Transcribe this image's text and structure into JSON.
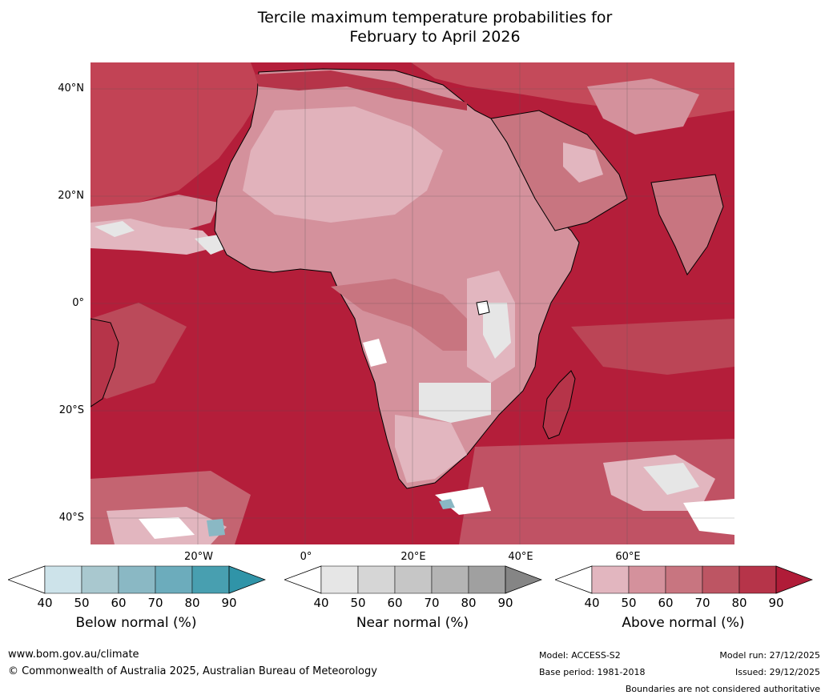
{
  "title": {
    "line1": "Tercile maximum temperature probabilities for",
    "line2": "February to April 2026"
  },
  "map": {
    "lat_labels": [
      "40°N",
      "20°N",
      "0°",
      "20°S",
      "40°S"
    ],
    "lon_labels": [
      "20°W",
      "0°",
      "20°E",
      "40°E",
      "60°E"
    ],
    "lat_range": [
      -45,
      45
    ],
    "lon_range": [
      -40,
      80
    ],
    "base_color": "#b41e3a"
  },
  "colorbars": [
    {
      "name": "below",
      "title": "Below normal (%)",
      "ticks": [
        "40",
        "50",
        "60",
        "70",
        "80",
        "90"
      ],
      "colors": [
        "#cde3ea",
        "#a9c8cf",
        "#8ab8c4",
        "#6cacbc",
        "#489fb0"
      ],
      "extend_color": "#3094a8"
    },
    {
      "name": "near",
      "title": "Near normal (%)",
      "ticks": [
        "40",
        "50",
        "60",
        "70",
        "80",
        "90"
      ],
      "colors": [
        "#e6e6e6",
        "#d6d6d6",
        "#c6c6c6",
        "#b4b4b4",
        "#a0a0a0"
      ],
      "extend_color": "#858585"
    },
    {
      "name": "above",
      "title": "Above normal (%)",
      "ticks": [
        "40",
        "50",
        "60",
        "70",
        "80",
        "90"
      ],
      "colors": [
        "#e2b6bf",
        "#d4919c",
        "#c87580",
        "#bd5563",
        "#b63449"
      ],
      "extend_color": "#b01c38"
    }
  ],
  "footer": {
    "website": "www.bom.gov.au/climate",
    "copyright": "© Commonwealth of Australia 2025, Australian Bureau of Meteorology",
    "model": "Model: ACCESS-S2",
    "base_period": "Base period: 1981-2018",
    "model_run": "Model run: 27/12/2025",
    "issued": "Issued: 29/12/2025",
    "disclaimer": "Boundaries are not considered authoritative"
  }
}
